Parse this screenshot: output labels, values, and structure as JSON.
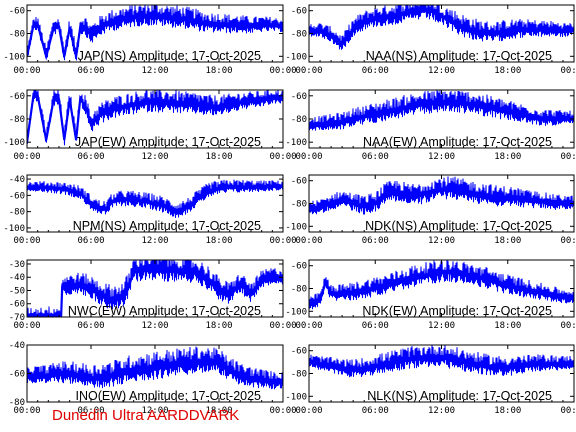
{
  "footer": {
    "text": "Dunedin Ultra AARDDVARK",
    "color": "#e00000"
  },
  "colors": {
    "trace": "#0000ff",
    "axis": "#000000",
    "background": "#ffffff",
    "footer": "#e00000"
  },
  "chart_data": [
    {
      "type": "line",
      "title": "JAP(NS) Amplitude: 17-Oct-2025",
      "x_ticks": [
        "00:00",
        "06:00",
        "12:00",
        "18:00",
        "00:00"
      ],
      "y_ticks": [
        "-100",
        "-80",
        "-60"
      ],
      "ylim": [
        -105,
        -55
      ],
      "grid": false,
      "series": [
        {
          "x": [
            0,
            0.6,
            1.0,
            1.8,
            2.5,
            3.0,
            3.5,
            4.0,
            4.6,
            5.0,
            5.5,
            6.0,
            6.5,
            7,
            8,
            9,
            10,
            11,
            12,
            13,
            14,
            15,
            16,
            17,
            18,
            19,
            20,
            21,
            22,
            23,
            24
          ],
          "y": [
            -100,
            -73,
            -72,
            -100,
            -75,
            -74,
            -100,
            -75,
            -100,
            -74,
            -75,
            -82,
            -78,
            -74,
            -70,
            -68,
            -66,
            -65,
            -65,
            -66,
            -67,
            -68,
            -70,
            -72,
            -72,
            -73,
            -73,
            -74,
            -73,
            -73,
            -74
          ]
        }
      ]
    },
    {
      "type": "line",
      "title": "NAA(NS) Amplitude: 17-Oct-2025",
      "x_ticks": [
        "00:00",
        "06:00",
        "12:00",
        "18:00",
        "00:00"
      ],
      "y_ticks": [
        "-100",
        "-80",
        "-60"
      ],
      "ylim": [
        -105,
        -55
      ],
      "grid": false,
      "series": [
        {
          "x": [
            0,
            1,
            2,
            3,
            4,
            5,
            6,
            7,
            8,
            9,
            10,
            11,
            12,
            13,
            14,
            15,
            16,
            17,
            18,
            19,
            20,
            21,
            22,
            23,
            24
          ],
          "y": [
            -78,
            -78,
            -82,
            -90,
            -76,
            -70,
            -67,
            -66,
            -64,
            -62,
            -60,
            -60,
            -65,
            -70,
            -75,
            -78,
            -80,
            -80,
            -78,
            -77,
            -77,
            -77,
            -77,
            -78,
            -77
          ]
        }
      ]
    },
    {
      "type": "line",
      "title": "JAP(EW) Amplitude: 17-Oct-2025",
      "x_ticks": [
        "00:00",
        "06:00",
        "12:00",
        "18:00",
        "00:00"
      ],
      "y_ticks": [
        "-100",
        "-80",
        "-60"
      ],
      "ylim": [
        -105,
        -55
      ],
      "grid": false,
      "series": [
        {
          "x": [
            0,
            0.6,
            1.0,
            1.8,
            2.5,
            3.0,
            3.5,
            4.0,
            4.6,
            5.0,
            5.5,
            6.0,
            6.5,
            7,
            8,
            9,
            10,
            11,
            12,
            13,
            14,
            15,
            16,
            17,
            18,
            19,
            20,
            21,
            22,
            23,
            24
          ],
          "y": [
            -100,
            -60,
            -60,
            -98,
            -63,
            -63,
            -98,
            -63,
            -98,
            -62,
            -70,
            -85,
            -80,
            -76,
            -72,
            -70,
            -68,
            -66,
            -66,
            -66,
            -67,
            -68,
            -68,
            -70,
            -70,
            -68,
            -66,
            -65,
            -64,
            -62,
            -62
          ]
        }
      ]
    },
    {
      "type": "line",
      "title": "NAA(EW) Amplitude: 17-Oct-2025",
      "x_ticks": [
        "00:00",
        "06:00",
        "12:00",
        "18:00",
        "00:00"
      ],
      "y_ticks": [
        "-100",
        "-80",
        "-60"
      ],
      "ylim": [
        -105,
        -55
      ],
      "grid": false,
      "series": [
        {
          "x": [
            0,
            1,
            2,
            3,
            4,
            5,
            6,
            7,
            8,
            9,
            10,
            11,
            12,
            13,
            14,
            15,
            16,
            17,
            18,
            19,
            20,
            21,
            22,
            23,
            24
          ],
          "y": [
            -85,
            -85,
            -84,
            -83,
            -80,
            -78,
            -76,
            -74,
            -72,
            -70,
            -68,
            -67,
            -66,
            -66,
            -67,
            -68,
            -70,
            -72,
            -74,
            -76,
            -78,
            -80,
            -80,
            -80,
            -80
          ]
        }
      ]
    },
    {
      "type": "line",
      "title": "NPM(NS) Amplitude: 17-Oct-2025",
      "x_ticks": [
        "00:00",
        "06:00",
        "12:00",
        "18:00",
        "00:00"
      ],
      "y_ticks": [
        "-100",
        "-80",
        "-60",
        "-40"
      ],
      "ylim": [
        -105,
        -35
      ],
      "grid": false,
      "series": [
        {
          "x": [
            0,
            1,
            2,
            3,
            4,
            5,
            6,
            7,
            7.5,
            8,
            9,
            10,
            11,
            12,
            13,
            14,
            15,
            16,
            17,
            18,
            19,
            20,
            21,
            22,
            23,
            24
          ],
          "y": [
            -50,
            -50,
            -51,
            -52,
            -54,
            -58,
            -70,
            -78,
            -76,
            -68,
            -65,
            -66,
            -68,
            -70,
            -74,
            -80,
            -75,
            -65,
            -55,
            -52,
            -50,
            -50,
            -50,
            -50,
            -49,
            -49
          ]
        }
      ]
    },
    {
      "type": "line",
      "title": "NDK(NS) Amplitude: 17-Oct-2025",
      "x_ticks": [
        "00:00",
        "06:00",
        "12:00",
        "18:00",
        "00:00"
      ],
      "y_ticks": [
        "-100",
        "-80",
        "-60"
      ],
      "ylim": [
        -105,
        -55
      ],
      "grid": false,
      "series": [
        {
          "x": [
            0,
            1,
            2,
            3,
            4,
            5,
            6,
            7,
            8,
            9,
            10,
            11,
            12,
            13,
            14,
            15,
            16,
            17,
            18,
            19,
            20,
            21,
            22,
            23,
            24
          ],
          "y": [
            -85,
            -84,
            -80,
            -77,
            -80,
            -83,
            -80,
            -72,
            -70,
            -74,
            -73,
            -70,
            -68,
            -68,
            -70,
            -72,
            -73,
            -75,
            -75,
            -76,
            -78,
            -78,
            -80,
            -80,
            -80
          ]
        }
      ]
    },
    {
      "type": "line",
      "title": "NWC(EW) Amplitude: 17-Oct-2025",
      "x_ticks": [
        "00:00",
        "06:00",
        "12:00",
        "18:00",
        "00:00"
      ],
      "y_ticks": [
        "-70",
        "-60",
        "-50",
        "-40",
        "-30"
      ],
      "ylim": [
        -70,
        -27
      ],
      "grid": false,
      "series": [
        {
          "x": [
            0,
            3.2,
            3.3,
            4,
            5,
            6,
            7,
            8,
            9,
            9.5,
            10,
            11,
            12,
            13,
            14,
            15,
            16,
            17,
            18,
            19,
            20,
            21,
            22,
            23,
            24
          ],
          "y": [
            -70,
            -70,
            -47,
            -47,
            -46,
            -49,
            -54,
            -57,
            -55,
            -48,
            -36,
            -34,
            -34,
            -35,
            -35,
            -36,
            -37,
            -42,
            -50,
            -54,
            -45,
            -53,
            -43,
            -40,
            -41
          ]
        }
      ]
    },
    {
      "type": "line",
      "title": "NDK(EW) Amplitude: 17-Oct-2025",
      "x_ticks": [
        "00:00",
        "06:00",
        "12:00",
        "18:00",
        "00:00"
      ],
      "y_ticks": [
        "-100",
        "-80",
        "-60"
      ],
      "ylim": [
        -105,
        -55
      ],
      "grid": false,
      "series": [
        {
          "x": [
            0,
            1,
            1.5,
            2,
            3,
            4,
            5,
            6,
            7,
            8,
            9,
            10,
            11,
            12,
            13,
            14,
            15,
            16,
            17,
            18,
            19,
            20,
            21,
            22,
            23,
            24
          ],
          "y": [
            -95,
            -90,
            -75,
            -85,
            -85,
            -84,
            -82,
            -80,
            -78,
            -75,
            -72,
            -70,
            -68,
            -66,
            -66,
            -68,
            -70,
            -72,
            -75,
            -78,
            -80,
            -82,
            -84,
            -86,
            -88,
            -88
          ]
        }
      ]
    },
    {
      "type": "line",
      "title": "INO(EW) Amplitude: 17-Oct-2025",
      "x_ticks": [
        "00:00",
        "06:00",
        "12:00",
        "18:00",
        "00:00"
      ],
      "y_ticks": [
        "-80",
        "-60",
        "-40"
      ],
      "ylim": [
        -80,
        -40
      ],
      "grid": false,
      "series": [
        {
          "x": [
            0,
            1,
            2,
            3,
            4,
            5,
            6,
            7,
            8,
            9,
            10,
            11,
            12,
            13,
            14,
            15,
            16,
            17,
            18,
            19,
            20,
            21,
            22,
            23,
            24
          ],
          "y": [
            -62,
            -62,
            -62,
            -60,
            -61,
            -62,
            -64,
            -63,
            -62,
            -60,
            -58,
            -57,
            -56,
            -55,
            -54,
            -53,
            -52,
            -52,
            -53,
            -58,
            -62,
            -64,
            -65,
            -66,
            -66
          ]
        }
      ]
    },
    {
      "type": "line",
      "title": "NLK(NS) Amplitude: 17-Oct-2025",
      "x_ticks": [
        "00:00",
        "06:00",
        "12:00",
        "18:00",
        "00:00"
      ],
      "y_ticks": [
        "-100",
        "-80",
        "-60"
      ],
      "ylim": [
        -105,
        -55
      ],
      "grid": false,
      "series": [
        {
          "x": [
            0,
            1,
            2,
            3,
            4,
            5,
            6,
            7,
            8,
            9,
            10,
            11,
            12,
            13,
            14,
            15,
            16,
            17,
            18,
            19,
            20,
            21,
            22,
            23,
            24
          ],
          "y": [
            -70,
            -72,
            -74,
            -76,
            -77,
            -76,
            -74,
            -72,
            -70,
            -68,
            -67,
            -66,
            -66,
            -68,
            -70,
            -72,
            -74,
            -75,
            -75,
            -74,
            -73,
            -72,
            -72,
            -72,
            -71
          ]
        }
      ]
    }
  ]
}
